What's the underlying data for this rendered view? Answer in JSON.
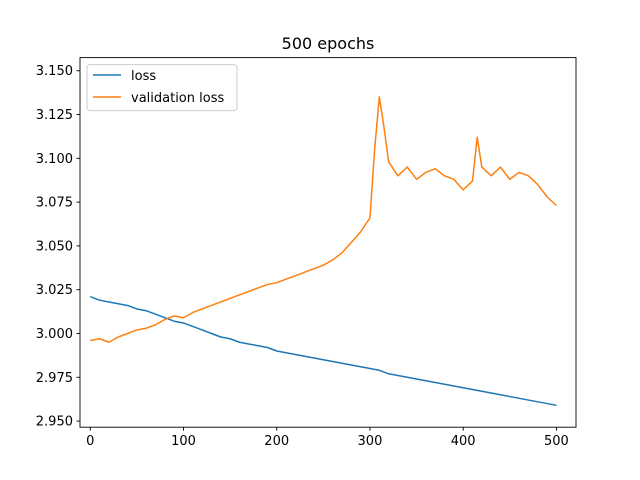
{
  "chart_data": {
    "type": "line",
    "title": "500 epochs",
    "xlabel": "",
    "ylabel": "",
    "xlim": [
      -11,
      521
    ],
    "ylim": [
      2.9465,
      3.1575
    ],
    "x_ticks": [
      0,
      100,
      200,
      300,
      400,
      500
    ],
    "x_tick_labels": [
      "0",
      "100",
      "200",
      "300",
      "400",
      "500"
    ],
    "y_ticks": [
      2.95,
      2.975,
      3.0,
      3.025,
      3.05,
      3.075,
      3.1,
      3.125,
      3.15
    ],
    "y_tick_labels": [
      "2.950",
      "2.975",
      "3.000",
      "3.025",
      "3.050",
      "3.075",
      "3.100",
      "3.125",
      "3.150"
    ],
    "grid": false,
    "legend_position": "top-left",
    "series": [
      {
        "name": "loss",
        "color": "#1f77b4",
        "x": [
          0,
          10,
          20,
          30,
          40,
          50,
          60,
          70,
          80,
          90,
          100,
          110,
          120,
          130,
          140,
          150,
          160,
          170,
          180,
          190,
          200,
          210,
          220,
          230,
          240,
          250,
          260,
          270,
          280,
          290,
          300,
          310,
          320,
          330,
          340,
          350,
          360,
          370,
          380,
          390,
          400,
          410,
          420,
          430,
          440,
          450,
          460,
          470,
          480,
          490,
          500
        ],
        "y": [
          3.021,
          3.019,
          3.018,
          3.017,
          3.016,
          3.014,
          3.013,
          3.011,
          3.009,
          3.007,
          3.006,
          3.004,
          3.002,
          3.0,
          2.998,
          2.997,
          2.995,
          2.994,
          2.993,
          2.992,
          2.99,
          2.989,
          2.988,
          2.987,
          2.986,
          2.985,
          2.984,
          2.983,
          2.982,
          2.981,
          2.98,
          2.979,
          2.977,
          2.976,
          2.975,
          2.974,
          2.973,
          2.972,
          2.971,
          2.97,
          2.969,
          2.968,
          2.967,
          2.966,
          2.965,
          2.964,
          2.963,
          2.962,
          2.961,
          2.96,
          2.959
        ]
      },
      {
        "name": "validation loss",
        "color": "#ff7f0e",
        "x": [
          0,
          10,
          20,
          30,
          40,
          50,
          60,
          70,
          80,
          90,
          100,
          110,
          120,
          130,
          140,
          150,
          160,
          170,
          180,
          190,
          200,
          210,
          220,
          230,
          240,
          250,
          260,
          270,
          280,
          290,
          300,
          305,
          310,
          315,
          320,
          330,
          340,
          350,
          360,
          370,
          380,
          390,
          400,
          410,
          415,
          420,
          430,
          440,
          450,
          460,
          470,
          480,
          490,
          500
        ],
        "y": [
          2.996,
          2.997,
          2.995,
          2.998,
          3.0,
          3.002,
          3.003,
          3.005,
          3.008,
          3.01,
          3.009,
          3.012,
          3.014,
          3.016,
          3.018,
          3.02,
          3.022,
          3.024,
          3.026,
          3.028,
          3.029,
          3.031,
          3.033,
          3.035,
          3.037,
          3.039,
          3.042,
          3.046,
          3.052,
          3.058,
          3.066,
          3.105,
          3.135,
          3.118,
          3.098,
          3.09,
          3.095,
          3.088,
          3.092,
          3.094,
          3.09,
          3.088,
          3.082,
          3.087,
          3.112,
          3.095,
          3.09,
          3.095,
          3.088,
          3.092,
          3.09,
          3.085,
          3.078,
          3.073
        ]
      }
    ]
  }
}
